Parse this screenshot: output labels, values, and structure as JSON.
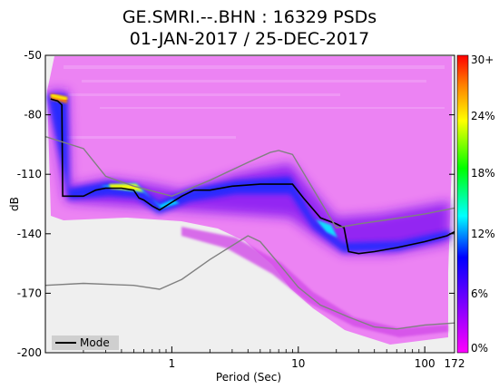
{
  "chart_data": {
    "type": "heatmap",
    "title": "GE.SMRI.--.BHN : 16329 PSDs",
    "subtitle": "01-JAN-2017 / 25-DEC-2017",
    "xlabel": "Period (Sec)",
    "ylabel": "dB",
    "x_scale": "log",
    "xlim": [
      0.1,
      172
    ],
    "ylim": [
      -200,
      -50
    ],
    "x_ticks": [
      {
        "value": 1,
        "label": "1"
      },
      {
        "value": 10,
        "label": "10"
      },
      {
        "value": 100,
        "label": "100"
      },
      {
        "value": 172,
        "label": "172"
      }
    ],
    "y_ticks": [
      {
        "value": -50,
        "label": "-50"
      },
      {
        "value": -80,
        "label": "-80"
      },
      {
        "value": -110,
        "label": "-110"
      },
      {
        "value": -140,
        "label": "-140"
      },
      {
        "value": -170,
        "label": "-170"
      },
      {
        "value": -200,
        "label": "-200"
      }
    ],
    "colorbar": {
      "min_percent": 0,
      "max_percent": 30,
      "labels": [
        "30+",
        "24%",
        "18%",
        "12%",
        "6%",
        "0%"
      ],
      "colors": [
        "#ff0000",
        "#ff8000",
        "#ffff00",
        "#00ff00",
        "#00ffff",
        "#0000ff",
        "#8000ff",
        "#ff00ff"
      ]
    },
    "legend": {
      "position": "bottom-left",
      "entries": [
        "Mode"
      ]
    },
    "grid": false,
    "series": [
      {
        "name": "Mode",
        "color": "#000000",
        "points": [
          [
            0.11,
            -72
          ],
          [
            0.125,
            -73
          ],
          [
            0.135,
            -75
          ],
          [
            0.137,
            -121
          ],
          [
            0.16,
            -121
          ],
          [
            0.2,
            -121
          ],
          [
            0.25,
            -118
          ],
          [
            0.3,
            -117
          ],
          [
            0.4,
            -117
          ],
          [
            0.5,
            -118
          ],
          [
            0.55,
            -122
          ],
          [
            0.6,
            -123
          ],
          [
            0.7,
            -126
          ],
          [
            0.8,
            -128
          ],
          [
            0.95,
            -125
          ],
          [
            1.2,
            -121
          ],
          [
            1.5,
            -118
          ],
          [
            2,
            -118
          ],
          [
            3,
            -116
          ],
          [
            5,
            -115
          ],
          [
            7,
            -115
          ],
          [
            9,
            -115
          ],
          [
            11,
            -122
          ],
          [
            15,
            -132
          ],
          [
            20,
            -135
          ],
          [
            23,
            -137
          ],
          [
            25,
            -149
          ],
          [
            30,
            -150
          ],
          [
            40,
            -149
          ],
          [
            60,
            -147
          ],
          [
            100,
            -144
          ],
          [
            150,
            -141
          ],
          [
            172,
            -139
          ]
        ]
      },
      {
        "name": "",
        "color": "#808080",
        "points": [
          [
            0.1,
            -91
          ],
          [
            0.2,
            -97
          ],
          [
            0.3,
            -111
          ],
          [
            0.5,
            -116
          ],
          [
            1,
            -121
          ],
          [
            2,
            -113
          ],
          [
            4,
            -104
          ],
          [
            6,
            -99
          ],
          [
            7,
            -98
          ],
          [
            9,
            -100
          ],
          [
            20,
            -137
          ],
          [
            30,
            -135
          ],
          [
            50,
            -133
          ],
          [
            100,
            -130
          ],
          [
            172,
            -127
          ]
        ]
      },
      {
        "name": "",
        "color": "#808080",
        "points": [
          [
            0.1,
            -166
          ],
          [
            0.2,
            -165
          ],
          [
            0.5,
            -166
          ],
          [
            0.8,
            -168
          ],
          [
            1.2,
            -163
          ],
          [
            2,
            -153
          ],
          [
            3,
            -146
          ],
          [
            4,
            -141
          ],
          [
            5,
            -144
          ],
          [
            7,
            -155
          ],
          [
            10,
            -167
          ],
          [
            15,
            -176
          ],
          [
            25,
            -182
          ],
          [
            40,
            -187
          ],
          [
            60,
            -188
          ],
          [
            100,
            -186
          ],
          [
            172,
            -185
          ]
        ]
      }
    ]
  }
}
